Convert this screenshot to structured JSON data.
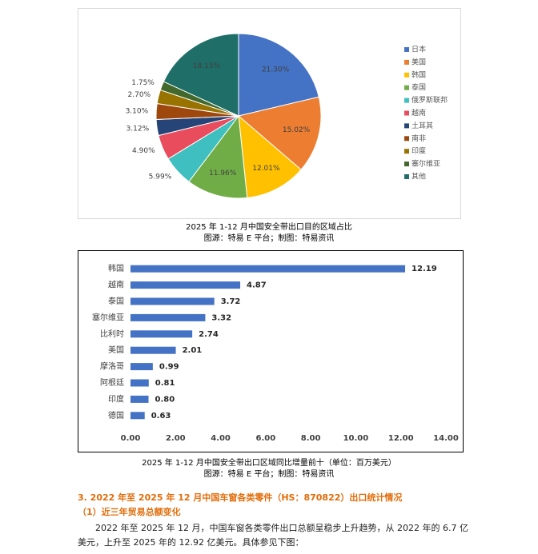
{
  "chart_data": [
    {
      "type": "pie",
      "title": "2025 年 1-12 月中国安全带出口目的区域占比",
      "subtitle": "图源：特易 E 平台；制图：特易资讯",
      "categories": [
        "日本",
        "美国",
        "韩国",
        "泰国",
        "俄罗斯联邦",
        "越南",
        "土耳其",
        "南非",
        "印度",
        "塞尔维亚",
        "其他"
      ],
      "values": [
        21.3,
        15.02,
        12.01,
        11.96,
        5.99,
        4.9,
        3.12,
        3.1,
        2.7,
        1.75,
        18.15
      ],
      "value_labels": [
        "21.30%",
        "15.02%",
        "12.01%",
        "11.96%",
        "5.99%",
        "4.90%",
        "3.12%",
        "3.10%",
        "2.70%",
        "1.75%",
        "18.15%"
      ],
      "colors": [
        "#4472c4",
        "#ed7d31",
        "#ffc000",
        "#70ad47",
        "#3fbfbf",
        "#e84c5d",
        "#264478",
        "#9e480e",
        "#997300",
        "#43682b",
        "#1f6e68"
      ],
      "legend": "right"
    },
    {
      "type": "hbar",
      "title": "2025 年 1-12 月中国安全带出口区域同比增量前十（单位：百万美元）",
      "subtitle": "图源：特易 E 平台；制图：特易资讯",
      "categories": [
        "韩国",
        "越南",
        "泰国",
        "塞尔维亚",
        "比利时",
        "美国",
        "摩洛哥",
        "阿根廷",
        "印度",
        "德国"
      ],
      "values": [
        12.19,
        4.87,
        3.72,
        3.32,
        2.74,
        2.01,
        0.99,
        0.81,
        0.8,
        0.63
      ],
      "value_labels": [
        "12.19",
        "4.87",
        "3.72",
        "3.32",
        "2.74",
        "2.01",
        "0.99",
        "0.81",
        "0.80",
        "0.63"
      ],
      "color": "#4472c4",
      "xlim": [
        0,
        14
      ],
      "xticks": [
        {
          "value": 0,
          "label": "0.00"
        },
        {
          "value": 2,
          "label": "2.00"
        },
        {
          "value": 4,
          "label": "4.00"
        },
        {
          "value": 6,
          "label": "6.00"
        },
        {
          "value": 8,
          "label": "8.00"
        },
        {
          "value": 10,
          "label": "10.00"
        },
        {
          "value": 12,
          "label": "12.00"
        },
        {
          "value": 14,
          "label": "14.00"
        }
      ]
    }
  ],
  "document": {
    "heading": "3. 2022 年至 2025 年 12 月中国车窗各类零件（HS：870822）出口统计情况",
    "subheading": "（1）近三年贸易总额变化",
    "paragraph": "2022 年至 2025 年 12 月，中国车窗各类零件出口总额呈稳步上升趋势，从 2022 年的 6.7 亿美元，上升至 2025 年的 12.92 亿美元。具体参见下图："
  }
}
